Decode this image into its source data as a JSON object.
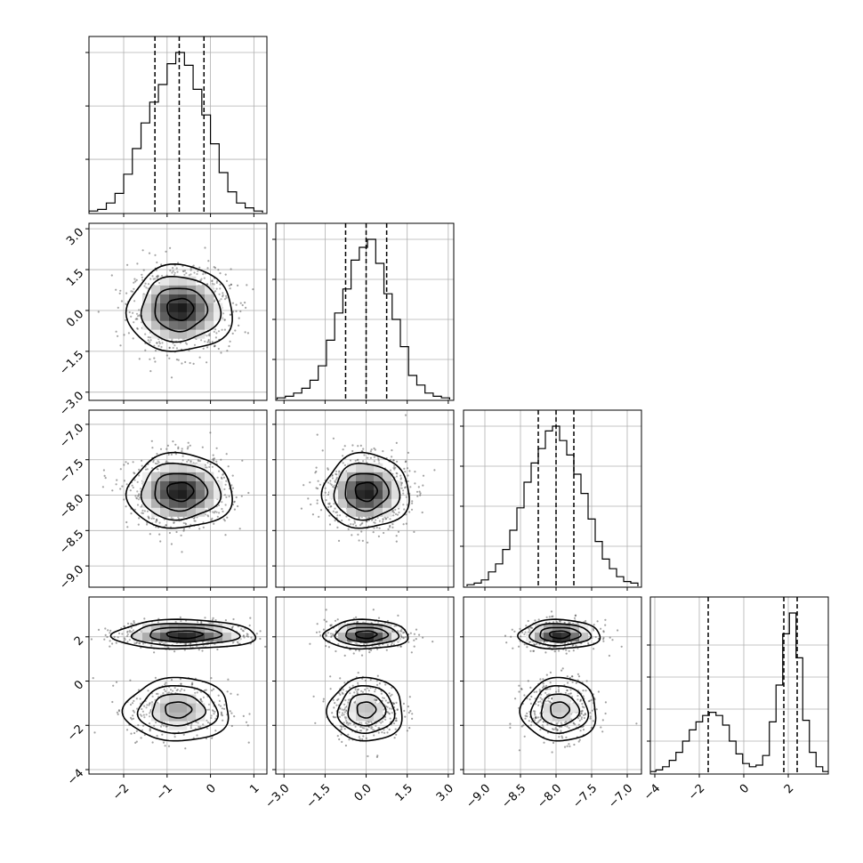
{
  "chart_data": {
    "type": "corner",
    "grid": true,
    "parameters": [
      {
        "range": [
          -2.8,
          1.3
        ],
        "ticks": [
          -2,
          -1,
          0,
          1
        ],
        "tick_labels": [
          "−2",
          "−1",
          "0",
          "1"
        ],
        "quantiles": [
          -1.28,
          -0.72,
          -0.15
        ],
        "hist_centers": [
          -2.7,
          -2.5,
          -2.3,
          -2.1,
          -1.9,
          -1.7,
          -1.5,
          -1.3,
          -1.1,
          -0.9,
          -0.7,
          -0.5,
          -0.3,
          -0.1,
          0.1,
          0.3,
          0.5,
          0.7,
          0.9,
          1.1
        ],
        "hist_counts": [
          1,
          2,
          6,
          12,
          24,
          40,
          56,
          69,
          80,
          93,
          100,
          92,
          77,
          61,
          43,
          25,
          13,
          6,
          3,
          1
        ]
      },
      {
        "range": [
          -3.3,
          3.2
        ],
        "ticks": [
          -3.0,
          -1.5,
          0.0,
          1.5,
          3.0
        ],
        "tick_labels": [
          "−3.0",
          "−1.5",
          "0.0",
          "1.5",
          "3.0"
        ],
        "quantiles": [
          -0.75,
          0.0,
          0.75
        ],
        "hist_centers": [
          -3.1,
          -2.8,
          -2.5,
          -2.2,
          -1.9,
          -1.6,
          -1.3,
          -1.0,
          -0.7,
          -0.4,
          -0.1,
          0.2,
          0.5,
          0.8,
          1.1,
          1.4,
          1.7,
          2.0,
          2.3,
          2.6,
          2.9
        ],
        "hist_counts": [
          1,
          2,
          4,
          7,
          12,
          21,
          37,
          54,
          69,
          87,
          95,
          100,
          85,
          66,
          50,
          33,
          15,
          9,
          4,
          2,
          1
        ]
      },
      {
        "range": [
          -9.3,
          -6.8
        ],
        "ticks": [
          -9.0,
          -8.5,
          -8.0,
          -7.5,
          -7.0
        ],
        "tick_labels": [
          "−9.0",
          "−8.5",
          "−8.0",
          "−7.5",
          "−7.0"
        ],
        "quantiles": [
          -8.25,
          -8.0,
          -7.75
        ],
        "hist_centers": [
          -9.2,
          -9.1,
          -9.0,
          -8.9,
          -8.8,
          -8.7,
          -8.6,
          -8.5,
          -8.4,
          -8.3,
          -8.2,
          -8.1,
          -8.0,
          -7.9,
          -7.8,
          -7.7,
          -7.6,
          -7.5,
          -7.4,
          -7.3,
          -7.2,
          -7.1,
          -7.0,
          -6.9
        ],
        "hist_counts": [
          1,
          2,
          4,
          9,
          14,
          23,
          35,
          49,
          65,
          77,
          86,
          97,
          100,
          91,
          82,
          70,
          58,
          42,
          28,
          17,
          11,
          6,
          3,
          2
        ]
      },
      {
        "range": [
          -4.2,
          3.8
        ],
        "ticks": [
          -4,
          -2,
          0,
          2
        ],
        "tick_labels": [
          "−4",
          "−2",
          "0",
          "2"
        ],
        "quantiles": [
          -1.6,
          1.8,
          2.4
        ],
        "hist_centers": [
          -4.1,
          -3.8,
          -3.5,
          -3.2,
          -2.9,
          -2.6,
          -2.3,
          -2.0,
          -1.7,
          -1.4,
          -1.1,
          -0.8,
          -0.5,
          -0.2,
          0.1,
          0.4,
          0.7,
          1.0,
          1.3,
          1.6,
          1.9,
          2.2,
          2.5,
          2.8,
          3.1,
          3.4,
          3.7
        ],
        "hist_counts": [
          1,
          2,
          4,
          8,
          13,
          20,
          27,
          32,
          36,
          38,
          36,
          30,
          20,
          12,
          6,
          4,
          5,
          11,
          32,
          55,
          87,
          100,
          72,
          33,
          13,
          4,
          1
        ]
      }
    ],
    "hist_y_ticks": [
      [
        0.333,
        0.666,
        1.0
      ],
      [
        0.25,
        0.5,
        0.75,
        1.0
      ],
      [
        0.25,
        0.5,
        0.75,
        1.0
      ],
      [
        0.2,
        0.4,
        0.6,
        0.8
      ]
    ],
    "pairs": [
      {
        "i": 1,
        "j": 0,
        "clusters": [
          {
            "cx": -0.7,
            "cy": 0.05,
            "sx": 0.55,
            "sy": 0.72,
            "weight": 1.0
          }
        ]
      },
      {
        "i": 2,
        "j": 0,
        "clusters": [
          {
            "cx": -0.7,
            "cy": -7.95,
            "sx": 0.55,
            "sy": 0.24,
            "weight": 1.0
          }
        ]
      },
      {
        "i": 2,
        "j": 1,
        "clusters": [
          {
            "cx": 0.0,
            "cy": -7.95,
            "sx": 0.72,
            "sy": 0.24,
            "weight": 1.0
          }
        ]
      },
      {
        "i": 3,
        "j": 0,
        "clusters": [
          {
            "cx": -0.6,
            "cy": 2.1,
            "sx": 0.75,
            "sy": 0.3,
            "weight": 0.55
          },
          {
            "cx": -0.75,
            "cy": -1.3,
            "sx": 0.55,
            "sy": 0.65,
            "weight": 0.45
          }
        ]
      },
      {
        "i": 3,
        "j": 1,
        "clusters": [
          {
            "cx": 0.0,
            "cy": 2.1,
            "sx": 0.7,
            "sy": 0.3,
            "weight": 0.55
          },
          {
            "cx": 0.0,
            "cy": -1.3,
            "sx": 0.62,
            "sy": 0.65,
            "weight": 0.45
          }
        ]
      },
      {
        "i": 3,
        "j": 2,
        "clusters": [
          {
            "cx": -7.95,
            "cy": 2.1,
            "sx": 0.26,
            "sy": 0.3,
            "weight": 0.55
          },
          {
            "cx": -7.95,
            "cy": -1.3,
            "sx": 0.24,
            "sy": 0.65,
            "weight": 0.45
          }
        ]
      }
    ],
    "contour_levels": [
      0.118,
      0.393,
      0.675,
      0.865
    ],
    "title": "",
    "axis_labels": [
      "",
      "",
      "",
      ""
    ]
  }
}
